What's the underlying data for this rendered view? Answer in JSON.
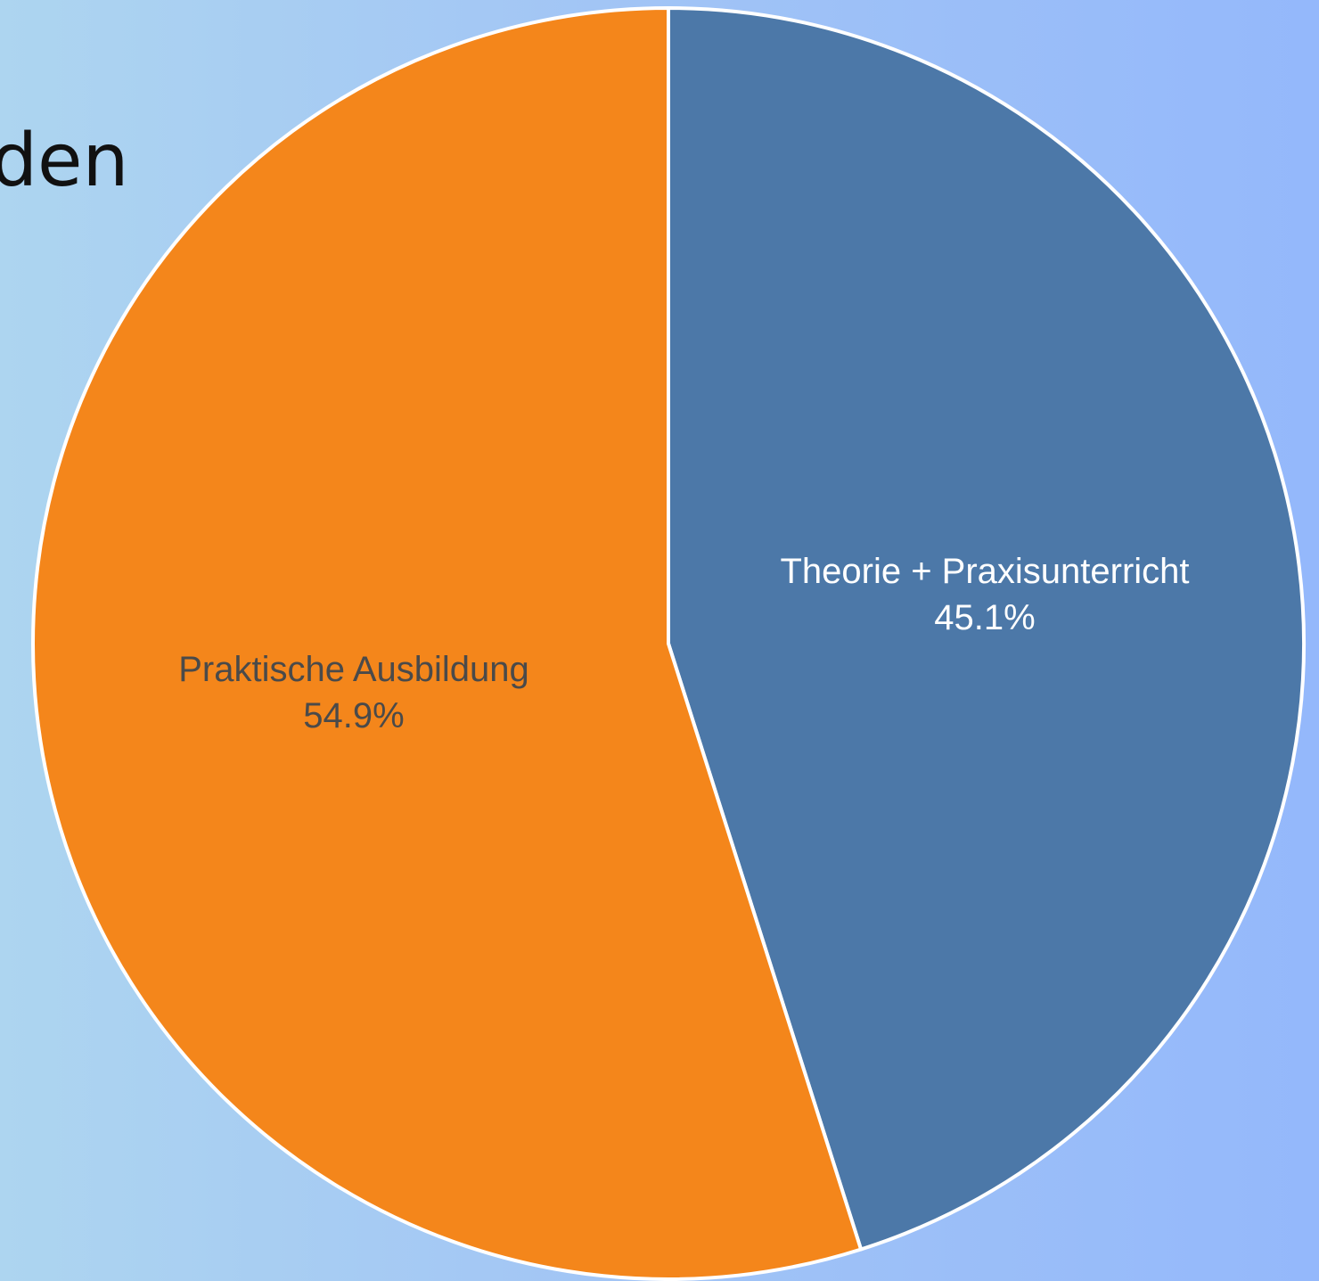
{
  "slide": {
    "title_fragment": "den"
  },
  "chart_data": {
    "type": "pie",
    "title": "",
    "slices": [
      {
        "label": "Theorie + Praxisunterricht",
        "value": 45.1,
        "value_label": "45.1%",
        "color": "#4c78a8",
        "text_color": "#ffffff"
      },
      {
        "label": "Praktische Ausbildung",
        "value": 54.9,
        "value_label": "54.9%",
        "color": "#f4861b",
        "text_color": "#4a4a4a"
      }
    ],
    "start": "12 o'clock, clockwise",
    "legend": "none"
  }
}
